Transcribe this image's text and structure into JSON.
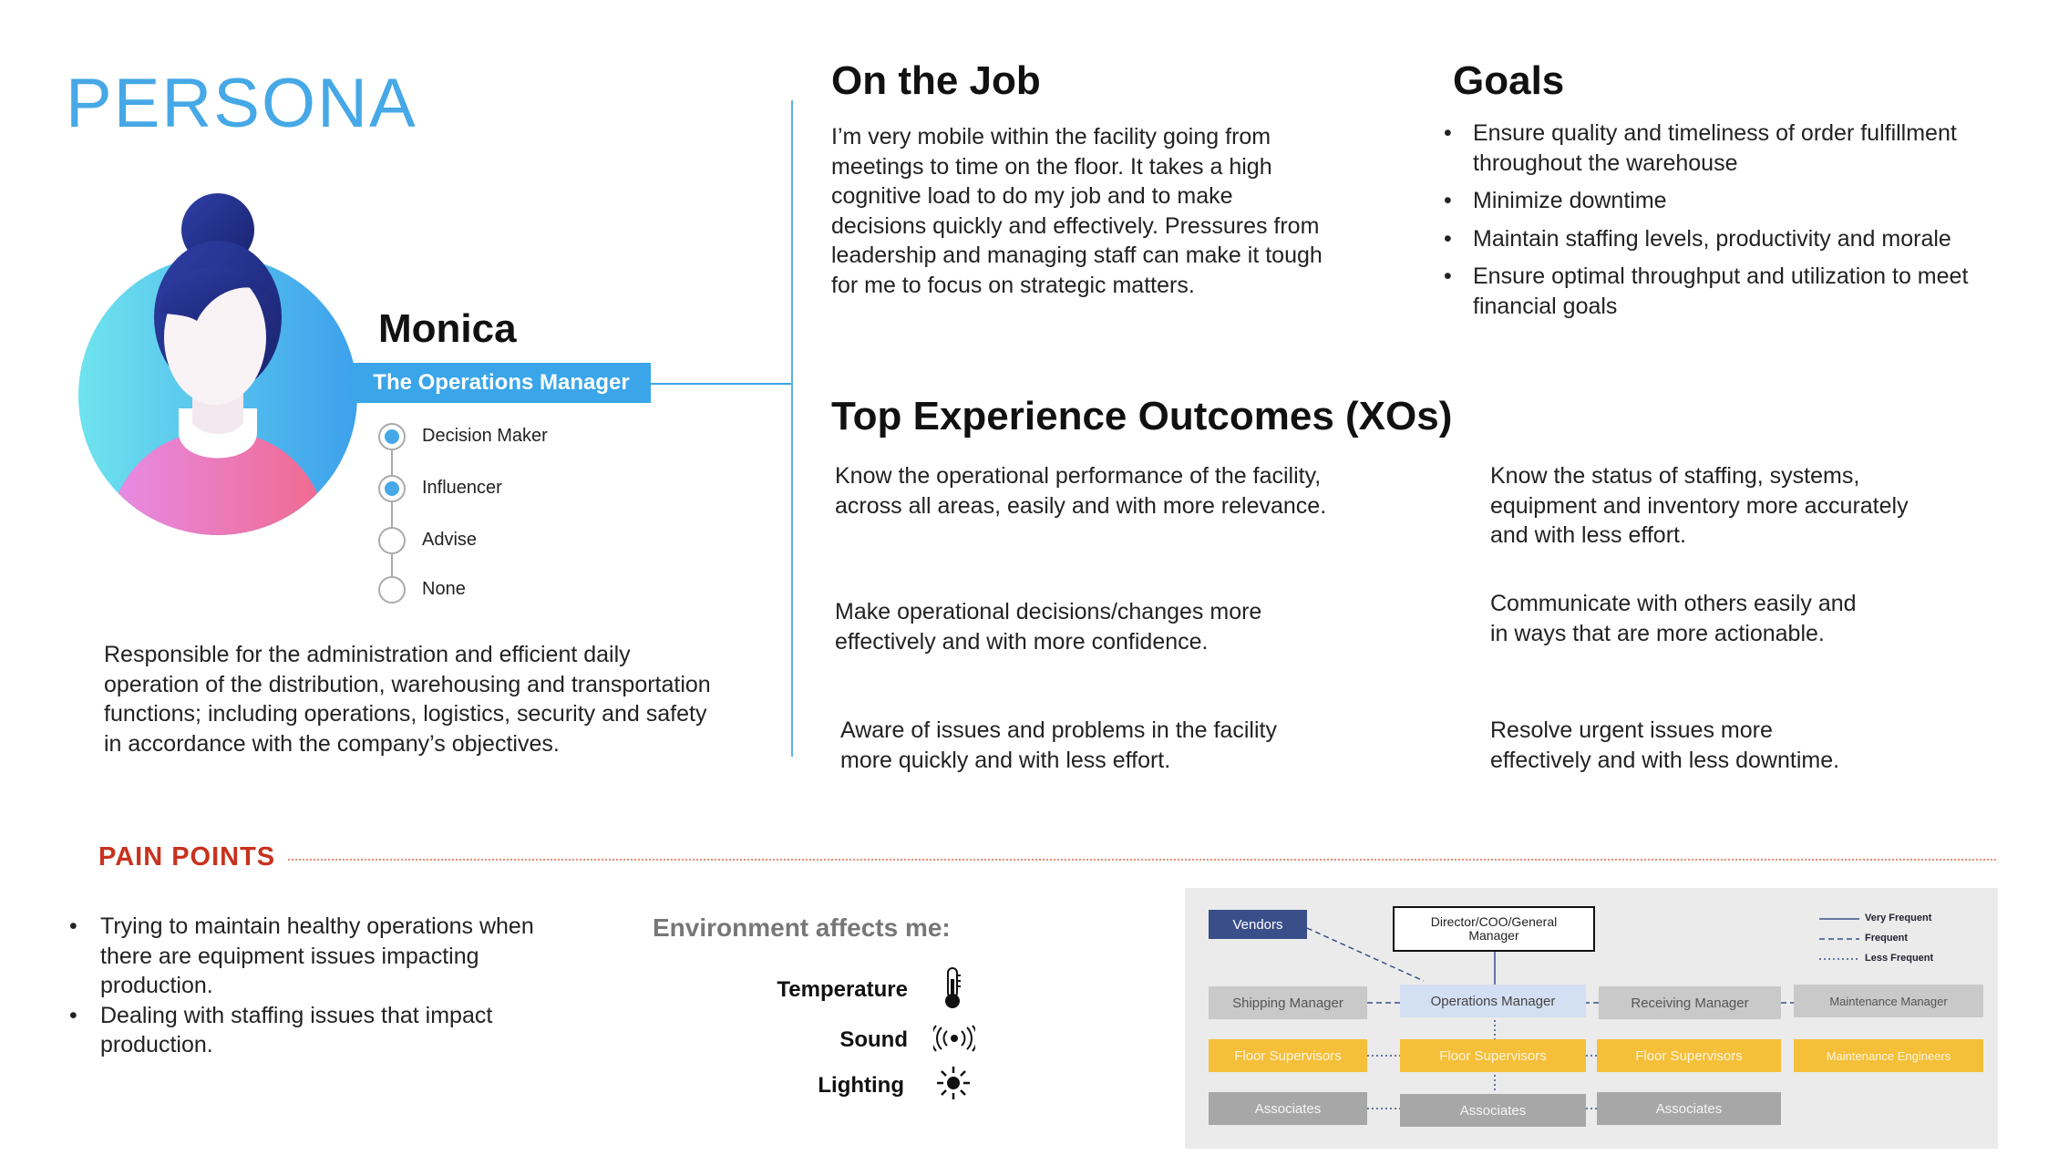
{
  "header": {
    "title": "PERSONA"
  },
  "persona": {
    "name": "Monica",
    "role": "The Operations Manager",
    "influence_levels": [
      {
        "label": "Decision Maker",
        "selected": true
      },
      {
        "label": "Influencer",
        "selected": true
      },
      {
        "label": "Advise",
        "selected": false
      },
      {
        "label": "None",
        "selected": false
      }
    ],
    "description": "Responsible for the administration and efficient daily operation of the distribution, warehousing and transportation functions; including operations, logistics, security and safety in accordance with the company’s objectives."
  },
  "on_the_job": {
    "title": "On the Job",
    "text": "I’m very mobile within the facility going from meetings to time on the floor. It takes a high cognitive load to do my job and to make decisions quickly and effectively. Pressures from leadership and managing staff can make it tough for me to focus on strategic matters."
  },
  "goals": {
    "title": "Goals",
    "items": [
      "Ensure quality and timeliness of order fulfillment throughout the warehouse",
      "Minimize downtime",
      "Maintain staffing levels, productivity and morale",
      "Ensure optimal throughput and utilization to meet financial goals"
    ]
  },
  "xos": {
    "title": "Top Experience Outcomes (XOs)",
    "left": [
      "Know the operational performance of the facility, across all areas, easily and with more relevance.",
      "Make operational decisions/changes more effectively and with more confidence.",
      "Aware of issues and problems in the facility more quickly and with less effort."
    ],
    "right": [
      "Know the status of staffing, systems, equipment and inventory more accurately and with less effort.",
      "Communicate with others easily and in ways that are more actionable.",
      "Resolve urgent issues more effectively and with less downtime."
    ]
  },
  "pain_points": {
    "title": "PAIN POINTS",
    "items": [
      "Trying to maintain healthy operations when there are equipment issues impacting production.",
      "Dealing with staffing issues that impact production."
    ]
  },
  "environment": {
    "title": "Environment affects me:",
    "items": [
      {
        "label": "Temperature",
        "icon": "thermometer-icon"
      },
      {
        "label": "Sound",
        "icon": "sound-icon"
      },
      {
        "label": "Lighting",
        "icon": "light-icon"
      }
    ]
  },
  "org_chart": {
    "vendors": "Vendors",
    "director": "Director/COO/General Manager",
    "row1": [
      "Shipping Manager",
      "Operations Manager",
      "Receiving Manager",
      "Maintenance Manager"
    ],
    "row2": [
      "Floor Supervisors",
      "Floor Supervisors",
      "Floor Supervisors",
      "Maintenance Engineers"
    ],
    "row3": [
      "Associates",
      "Associates",
      "Associates"
    ],
    "legend": [
      "Very Frequent",
      "Frequent",
      "Less Frequent"
    ],
    "colors": {
      "navy": "#3a4f8a",
      "yellow": "#f5bf3a",
      "gray": "#c9c9c9",
      "dark_gray": "#a7a7a7",
      "highlight": "#d3dff2"
    }
  }
}
